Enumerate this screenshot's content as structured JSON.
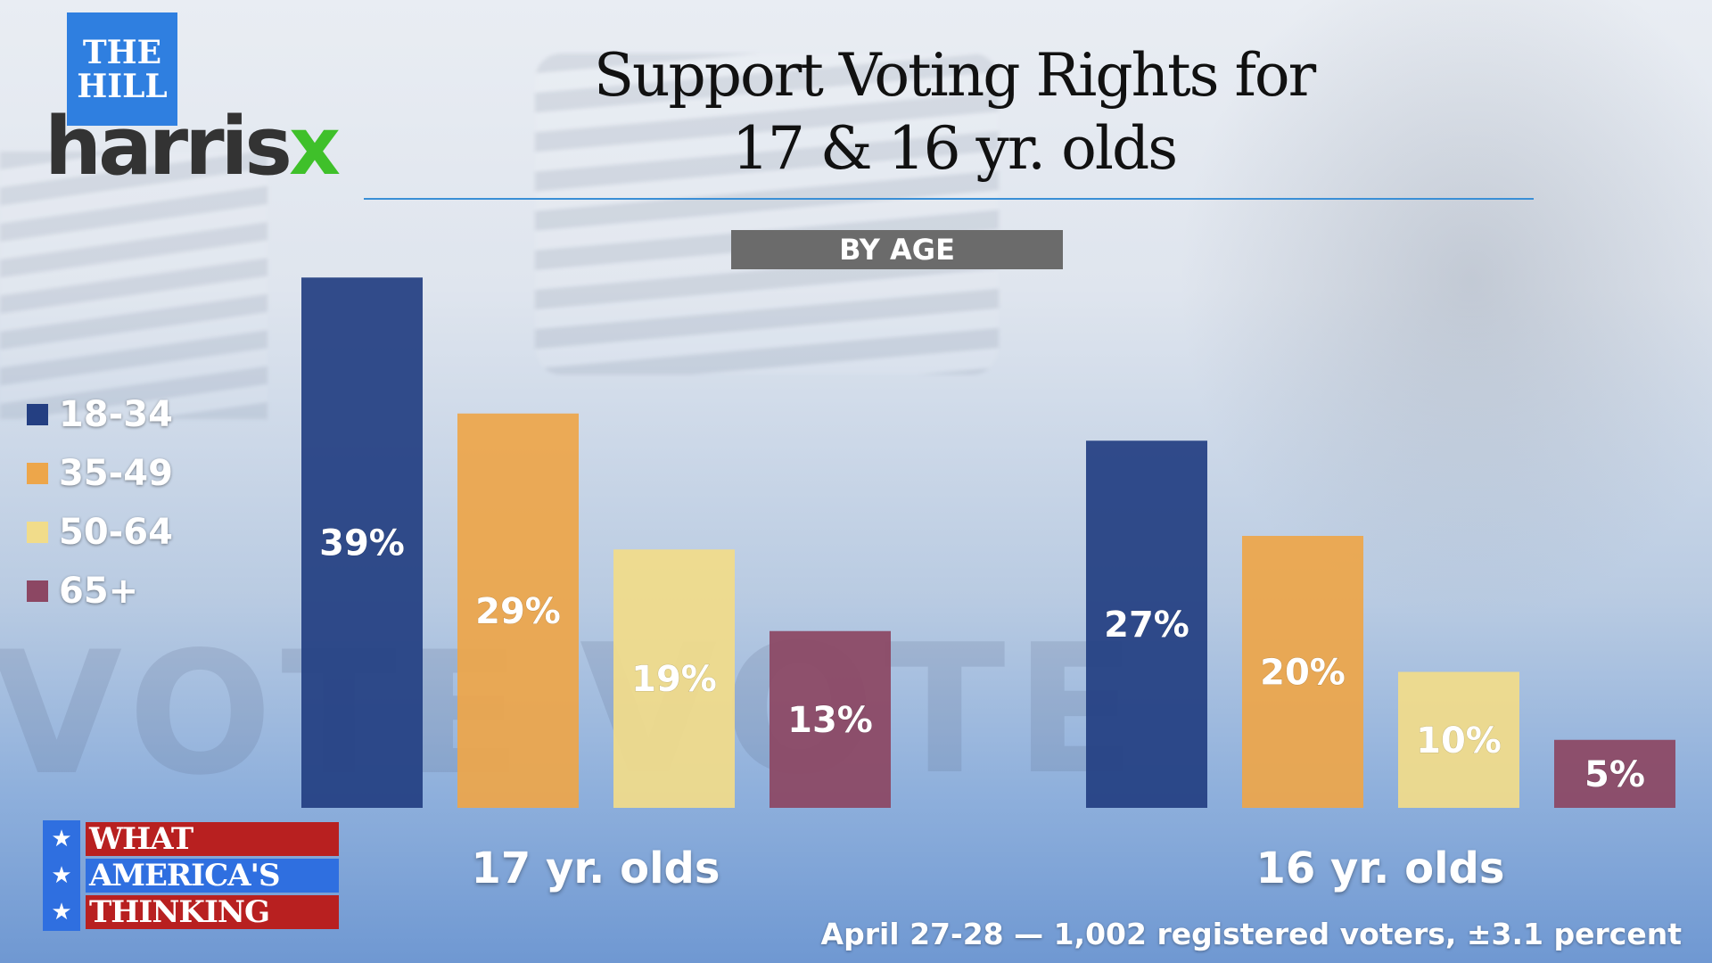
{
  "brand": {
    "hill_line1": "THE",
    "hill_line2": "HILL",
    "harris_main": "harris",
    "harris_x": "x",
    "wat_line1": "WHAT",
    "wat_line2": "AMERICA'S",
    "wat_line3": "THINKING",
    "star": "★"
  },
  "background": {
    "vote_word_1": "VOTE",
    "vote_word_2": "VOTE"
  },
  "colors": {
    "age_18_34": "#243f82",
    "age_35_49": "#eda64a",
    "age_50_64": "#f1dc8a",
    "age_65_plus": "#8c4763"
  },
  "chart_data": {
    "type": "bar",
    "title": "Support Voting Rights for 17 & 16 yr. olds",
    "title_line1": "Support Voting Rights for",
    "title_line2": "17 & 16 yr. olds",
    "subtitle": "BY AGE",
    "categories": [
      "17 yr. olds",
      "16 yr. olds"
    ],
    "series": [
      {
        "name": "18-34",
        "values": [
          39,
          27
        ],
        "labels": [
          "39%",
          "27%"
        ]
      },
      {
        "name": "35-49",
        "values": [
          29,
          20
        ],
        "labels": [
          "29%",
          "20%"
        ]
      },
      {
        "name": "50-64",
        "values": [
          19,
          10
        ],
        "labels": [
          "19%",
          "10%"
        ]
      },
      {
        "name": "65+",
        "values": [
          13,
          5
        ],
        "labels": [
          "13%",
          "5%"
        ]
      }
    ],
    "ylim": [
      0,
      40
    ],
    "legend_position": "left",
    "grid": false,
    "source_note": "April 27-28 — 1,002 registered voters, ±3.1 percent"
  }
}
